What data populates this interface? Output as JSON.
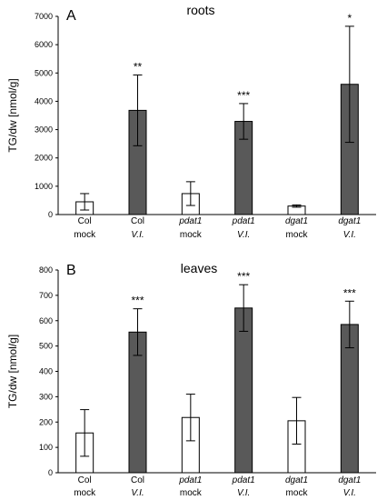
{
  "chart_data": [
    {
      "type": "bar",
      "panel": "A",
      "title": "roots",
      "ylabel": "TG/dw [nmol/g]",
      "xlabel": "",
      "ylim": [
        0,
        7000
      ],
      "yticks": [
        0,
        1000,
        2000,
        3000,
        4000,
        5000,
        6000,
        7000
      ],
      "categories": [
        {
          "line1": "Col",
          "line2": "mock",
          "line1_italic": false,
          "line2_italic": false
        },
        {
          "line1": "Col",
          "line2": "V.I.",
          "line1_italic": false,
          "line2_italic": true
        },
        {
          "line1": "pdat1",
          "line2": "mock",
          "line1_italic": true,
          "line2_italic": false
        },
        {
          "line1": "pdat1",
          "line2": "V.I.",
          "line1_italic": true,
          "line2_italic": true
        },
        {
          "line1": "dgat1",
          "line2": "mock",
          "line1_italic": true,
          "line2_italic": false
        },
        {
          "line1": "dgat1",
          "line2": "V.I.",
          "line1_italic": true,
          "line2_italic": true
        }
      ],
      "values": [
        450,
        3680,
        740,
        3290,
        300,
        4600
      ],
      "errors": [
        290,
        1250,
        420,
        630,
        40,
        2050
      ],
      "significance": [
        "",
        "**",
        "",
        "***",
        "",
        "*"
      ],
      "fills": [
        "#ffffff",
        "#595959",
        "#ffffff",
        "#595959",
        "#ffffff",
        "#595959"
      ],
      "grid": false
    },
    {
      "type": "bar",
      "panel": "B",
      "title": "leaves",
      "ylabel": "TG/dw [nmol/g]",
      "xlabel": "",
      "ylim": [
        0,
        800
      ],
      "yticks": [
        0,
        100,
        200,
        300,
        400,
        500,
        600,
        700,
        800
      ],
      "categories": [
        {
          "line1": "Col",
          "line2": "mock",
          "line1_italic": false,
          "line2_italic": false
        },
        {
          "line1": "Col",
          "line2": "V.I.",
          "line1_italic": false,
          "line2_italic": true
        },
        {
          "line1": "pdat1",
          "line2": "mock",
          "line1_italic": true,
          "line2_italic": false
        },
        {
          "line1": "pdat1",
          "line2": "V.I.",
          "line1_italic": true,
          "line2_italic": true
        },
        {
          "line1": "dgat1",
          "line2": "mock",
          "line1_italic": true,
          "line2_italic": false
        },
        {
          "line1": "dgat1",
          "line2": "V.I.",
          "line1_italic": true,
          "line2_italic": true
        }
      ],
      "values": [
        157,
        555,
        218,
        650,
        205,
        585
      ],
      "errors": [
        92,
        92,
        92,
        92,
        92,
        92
      ],
      "significance": [
        "",
        "***",
        "",
        "***",
        "",
        "***"
      ],
      "fills": [
        "#ffffff",
        "#595959",
        "#ffffff",
        "#595959",
        "#ffffff",
        "#595959"
      ],
      "grid": false
    }
  ]
}
